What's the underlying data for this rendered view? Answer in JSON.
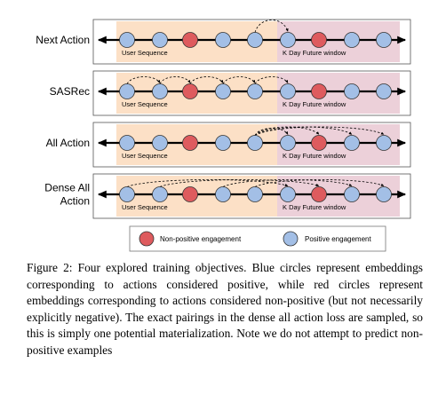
{
  "rows": [
    {
      "label_lines": [
        "Next Action"
      ]
    },
    {
      "label_lines": [
        "SASRec"
      ]
    },
    {
      "label_lines": [
        "All Action"
      ]
    },
    {
      "label_lines": [
        "Dense All",
        "Action"
      ]
    }
  ],
  "region_labels": {
    "user_sequence": "User Sequence",
    "future_window": "K Day Future window"
  },
  "nodes": [
    "positive",
    "positive",
    "non-positive",
    "positive",
    "positive",
    "positive",
    "non-positive",
    "positive",
    "positive"
  ],
  "legend": {
    "non_positive": "Non-positive engagement",
    "positive": "Positive engagement"
  },
  "colors": {
    "positive": "#a3bfe6",
    "non_positive": "#de5b5e",
    "user_sequence_bg": "#fce0c6",
    "future_window_bg": "#ecd0d9",
    "line": "#000000"
  },
  "caption": {
    "label": "Figure 2:",
    "text": "Four explored training objectives. Blue circles represent embeddings corresponding to actions considered positive, while red circles represent embeddings corresponding to actions considered non-positive (but not necessarily explicitly negative). The exact pairings in the dense all action loss are sampled, so this is simply one potential materialization. Note we do not attempt to predict non-positive examples"
  }
}
